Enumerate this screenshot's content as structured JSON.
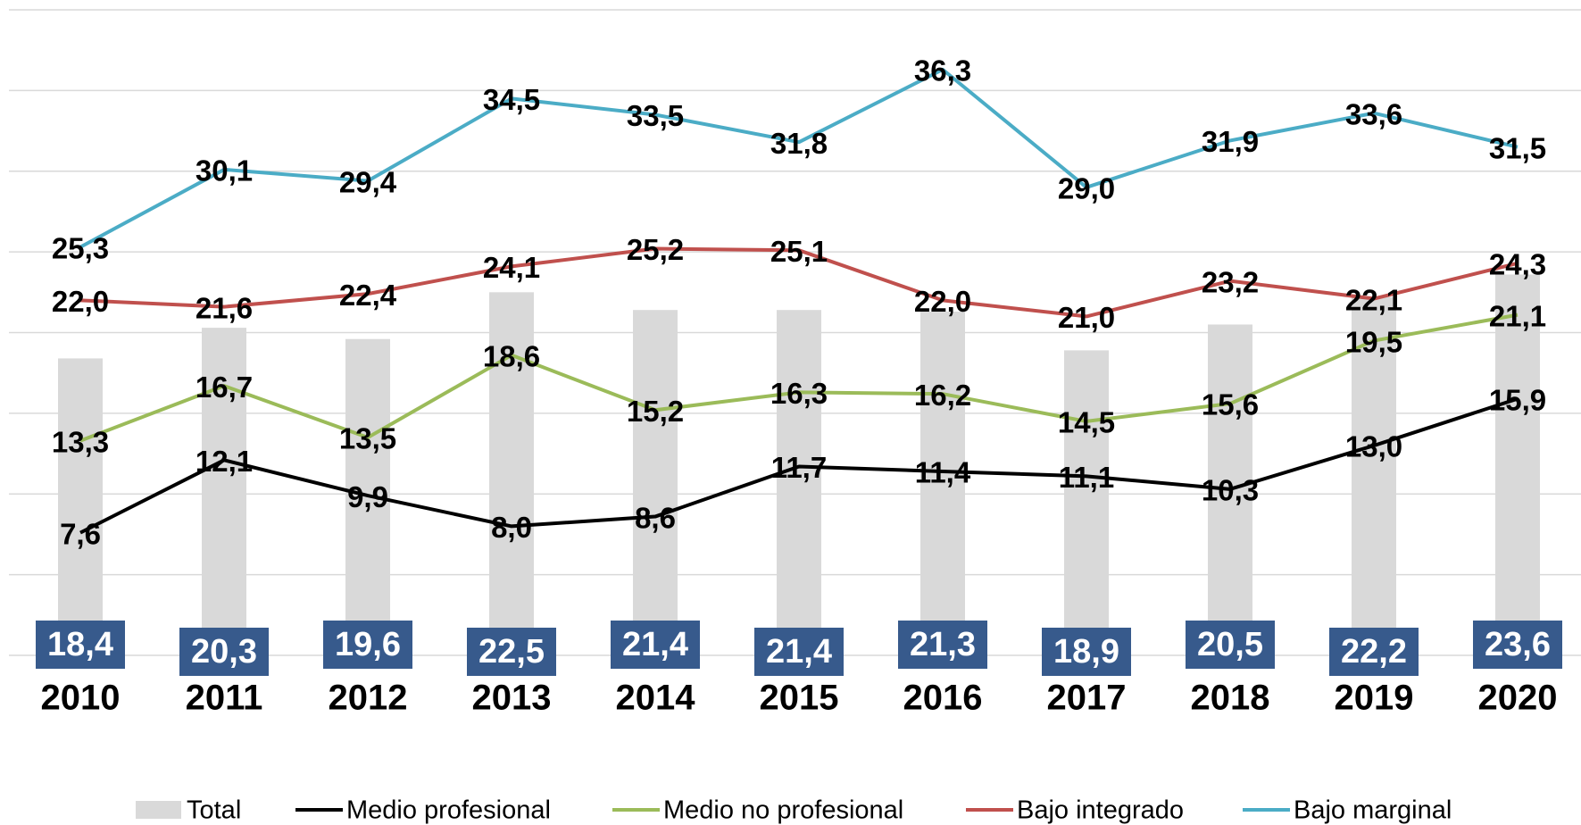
{
  "chart_data": {
    "type": "bar",
    "categories": [
      "2010",
      "2011",
      "2012",
      "2013",
      "2014",
      "2015",
      "2016",
      "2017",
      "2018",
      "2019",
      "2020"
    ],
    "ylim": [
      0,
      40
    ],
    "yticks": [
      0,
      5,
      10,
      15,
      20,
      25,
      30,
      35,
      40
    ],
    "grid": true,
    "legend": "bottom",
    "series": [
      {
        "name": "Total",
        "type": "bar",
        "color": "#d9d9d9",
        "label_color": "#375a8c",
        "values": [
          18.4,
          20.3,
          19.6,
          22.5,
          21.4,
          21.4,
          21.3,
          18.9,
          20.5,
          22.2,
          23.6
        ],
        "value_labels": [
          "18,4",
          "20,3",
          "19,6",
          "22,5",
          "21,4",
          "21,4",
          "21,3",
          "18,9",
          "20,5",
          "22,2",
          "23,6"
        ]
      },
      {
        "name": "Medio profesional",
        "type": "line",
        "color": "#000000",
        "values": [
          7.6,
          12.1,
          9.9,
          8.0,
          8.6,
          11.7,
          11.4,
          11.1,
          10.3,
          13.0,
          15.9
        ],
        "value_labels": [
          "7,6",
          "12,1",
          "9,9",
          "8,0",
          "8,6",
          "11,7",
          "11,4",
          "11,1",
          "10,3",
          "13,0",
          "15,9"
        ]
      },
      {
        "name": "Medio no profesional",
        "type": "line",
        "color": "#9bbb59",
        "values": [
          13.3,
          16.7,
          13.5,
          18.6,
          15.2,
          16.3,
          16.2,
          14.5,
          15.6,
          19.5,
          21.1
        ],
        "value_labels": [
          "13,3",
          "16,7",
          "13,5",
          "18,6",
          "15,2",
          "16,3",
          "16,2",
          "14,5",
          "15,6",
          "19,5",
          "21,1"
        ]
      },
      {
        "name": "Bajo integrado",
        "type": "line",
        "color": "#c0504d",
        "values": [
          22.0,
          21.6,
          22.4,
          24.1,
          25.2,
          25.1,
          22.0,
          21.0,
          23.2,
          22.1,
          24.3
        ],
        "value_labels": [
          "22,0",
          "21,6",
          "22,4",
          "24,1",
          "25,2",
          "25,1",
          "22,0",
          "21,0",
          "23,2",
          "22,1",
          "24,3"
        ]
      },
      {
        "name": "Bajo marginal",
        "type": "line",
        "color": "#4bacc6",
        "values": [
          25.3,
          30.1,
          29.4,
          34.5,
          33.5,
          31.8,
          36.3,
          29.0,
          31.9,
          33.6,
          31.5
        ],
        "value_labels": [
          "25,3",
          "30,1",
          "29,4",
          "34,5",
          "33,5",
          "31,8",
          "36,3",
          "29,0",
          "31,9",
          "33,6",
          "31,5"
        ]
      }
    ]
  }
}
